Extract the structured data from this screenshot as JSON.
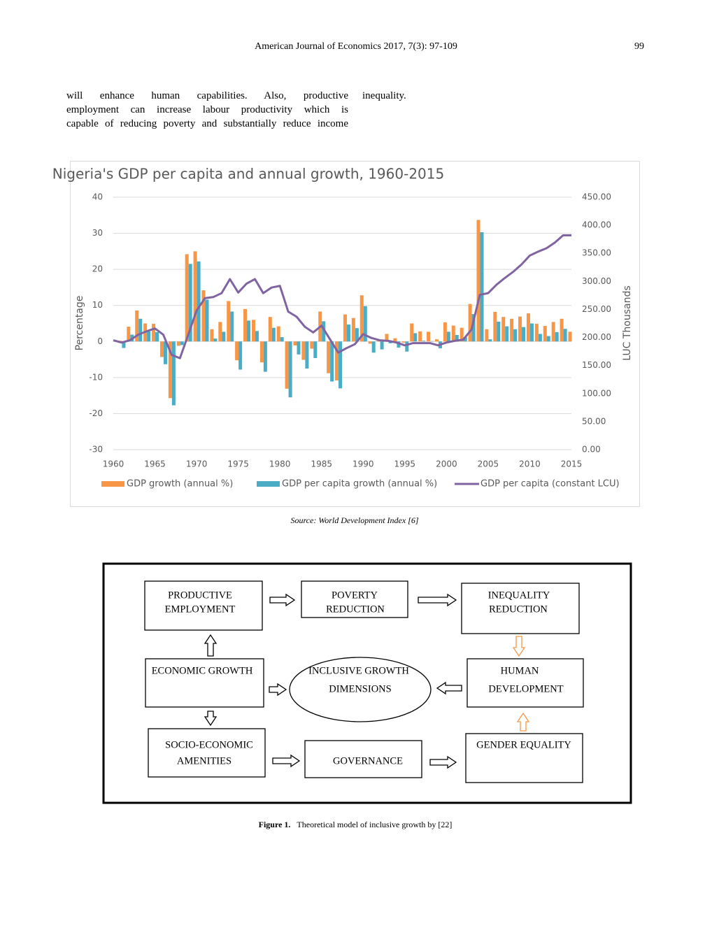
{
  "header": {
    "journal": "American Journal of Economics 2017, 7(3): 97-109",
    "page": "99"
  },
  "text": {
    "left_lines": [
      "will enhance human capabilities. Also, productive",
      "employment can increase labour productivity which is",
      "capable of reducing poverty and substantially reduce income"
    ],
    "right": "inequality."
  },
  "chart_data": {
    "type": "combo",
    "title": "Nigeria's GDP per capita and annual growth, 1960-2015",
    "y_label": "Percentage",
    "y2_label": "LUC Thousands",
    "x": [
      1960,
      1961,
      1962,
      1963,
      1964,
      1965,
      1966,
      1967,
      1968,
      1969,
      1970,
      1971,
      1972,
      1973,
      1974,
      1975,
      1976,
      1977,
      1978,
      1979,
      1980,
      1981,
      1982,
      1983,
      1984,
      1985,
      1986,
      1987,
      1988,
      1989,
      1990,
      1991,
      1992,
      1993,
      1994,
      1995,
      1996,
      1997,
      1998,
      1999,
      2000,
      2001,
      2002,
      2003,
      2004,
      2005,
      2006,
      2007,
      2008,
      2009,
      2010,
      2011,
      2012,
      2013,
      2014,
      2015
    ],
    "xlim": [
      1960,
      2015
    ],
    "xticks": [
      1960,
      1965,
      1970,
      1975,
      1980,
      1985,
      1990,
      1995,
      2000,
      2005,
      2010,
      2015
    ],
    "ylim": [
      -30,
      40
    ],
    "yticks": [
      -30,
      -20,
      -10,
      0,
      10,
      20,
      30,
      40
    ],
    "y2lim": [
      0,
      450
    ],
    "y2ticks": [
      {
        "value": 0,
        "label": "0.00"
      },
      {
        "value": 50,
        "label": "50.00"
      },
      {
        "value": 100,
        "label": "100.00"
      },
      {
        "value": 150,
        "label": "150.00"
      },
      {
        "value": 200,
        "label": "200.00"
      },
      {
        "value": 250,
        "label": "250.00"
      },
      {
        "value": 300,
        "label": "300.00"
      },
      {
        "value": 350,
        "label": "350.00"
      },
      {
        "value": 400,
        "label": "400.00"
      },
      {
        "value": 450,
        "label": "450.00"
      }
    ],
    "grid": true,
    "series": [
      {
        "name": "GDP growth (annual %)",
        "color": "#f79646",
        "type": "bar",
        "values": [
          null,
          0.2,
          4.1,
          8.6,
          5.0,
          4.9,
          -4.3,
          -15.7,
          -1.2,
          24.2,
          25.0,
          14.2,
          3.4,
          5.4,
          11.2,
          -5.2,
          9.0,
          6.0,
          -5.8,
          6.8,
          4.2,
          -13.1,
          -1.1,
          -5.1,
          -2.0,
          8.3,
          -8.8,
          -10.8,
          7.5,
          6.5,
          12.8,
          -0.6,
          0.4,
          2.1,
          0.9,
          -0.3,
          5.0,
          2.8,
          2.7,
          0.6,
          5.3,
          4.4,
          3.8,
          10.4,
          33.7,
          3.4,
          8.2,
          6.8,
          6.3,
          6.9,
          7.8,
          4.9,
          4.3,
          5.4,
          6.3,
          2.7
        ]
      },
      {
        "name": "GDP per capita growth (annual %)",
        "color": "#4bacc6",
        "type": "bar",
        "values": [
          null,
          -1.8,
          1.9,
          6.3,
          2.8,
          2.6,
          -6.3,
          -17.7,
          -1.0,
          21.5,
          22.2,
          11.6,
          0.8,
          2.7,
          8.3,
          -7.8,
          5.8,
          2.9,
          -8.4,
          3.8,
          1.2,
          -15.5,
          -3.6,
          -7.5,
          -4.6,
          5.6,
          -11.1,
          -13.0,
          4.7,
          3.7,
          9.8,
          -3.1,
          -2.2,
          -0.5,
          -1.7,
          -2.8,
          2.3,
          0.2,
          0.1,
          -1.9,
          2.7,
          1.8,
          1.2,
          7.6,
          30.3,
          0.6,
          5.5,
          4.2,
          3.4,
          4.0,
          5.0,
          2.1,
          1.5,
          2.6,
          3.5,
          0.0
        ]
      },
      {
        "name": "GDP per capita (constant LCU)",
        "color": "#8064a2",
        "type": "line",
        "axis": "y2",
        "values": [
          195,
          191,
          195,
          205,
          211,
          216,
          205,
          169,
          163,
          205,
          248,
          270,
          272,
          279,
          304,
          280,
          296,
          304,
          279,
          289,
          292,
          246,
          237,
          219,
          209,
          221,
          197,
          173,
          181,
          188,
          206,
          199,
          195,
          194,
          191,
          186,
          190,
          190,
          190,
          186,
          191,
          194,
          196,
          214,
          276,
          279,
          294,
          306,
          317,
          330,
          346,
          353,
          359,
          369,
          382,
          382
        ]
      }
    ]
  },
  "source": "Source: World Development Index [6]",
  "diagram": {
    "nodes": [
      {
        "lines": [
          "PRODUCTIVE",
          "EMPLOYMENT"
        ]
      },
      {
        "lines": [
          "POVERTY",
          "REDUCTION"
        ]
      },
      {
        "lines": [
          "INEQUALITY",
          "REDUCTION"
        ]
      },
      {
        "lines": [
          "ECONOMIC GROWTH"
        ]
      },
      {
        "lines": [
          "INCLUSIVE GROWTH",
          "DIMENSIONS"
        ]
      },
      {
        "lines": [
          "HUMAN",
          "DEVELOPMENT"
        ]
      },
      {
        "lines": [
          "SOCIO-ECONOMIC",
          "AMENITIES"
        ]
      },
      {
        "lines": [
          "GOVERNANCE"
        ]
      },
      {
        "lines": [
          "GENDER EQUALITY"
        ]
      }
    ]
  },
  "figure": {
    "label": "Figure 1.",
    "caption": "Theoretical model of inclusive growth by [22]"
  }
}
